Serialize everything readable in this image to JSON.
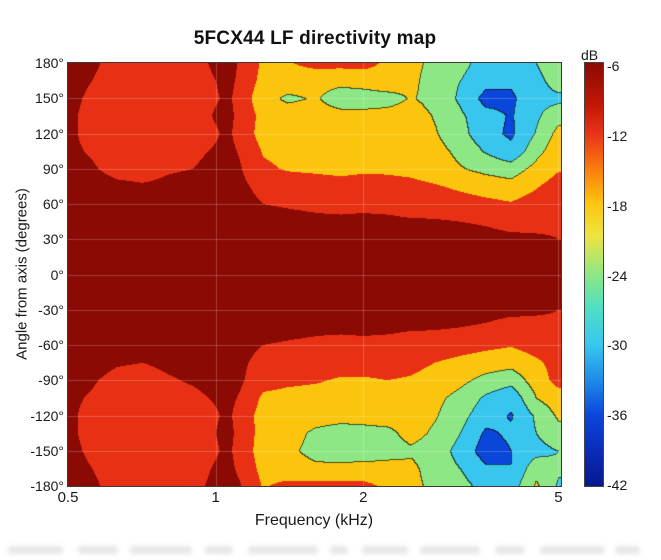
{
  "figure": {
    "background": "#ffffff"
  },
  "chart_data": {
    "type": "filled_contour",
    "title": "5FCX44 LF directivity map",
    "xlabel": "Frequency (kHz)",
    "ylabel": "Angle from axis (degrees)",
    "x_scale": "log",
    "x_range_khz": [
      0.5,
      5.06
    ],
    "y_range_deg": [
      -180,
      180
    ],
    "grid_lines": "on",
    "x_ticks": [
      {
        "label": "0.5",
        "value": 0.5
      },
      {
        "label": "1",
        "value": 1
      },
      {
        "label": "2",
        "value": 2
      },
      {
        "label": "5",
        "value": 5
      }
    ],
    "y_ticks": [
      {
        "label": "180°",
        "value": 180
      },
      {
        "label": "150°",
        "value": 150
      },
      {
        "label": "120°",
        "value": 120
      },
      {
        "label": "90°",
        "value": 90
      },
      {
        "label": "60°",
        "value": 60
      },
      {
        "label": "30°",
        "value": 30
      },
      {
        "label": "0°",
        "value": 0
      },
      {
        "label": "-30°",
        "value": -30
      },
      {
        "label": "-60°",
        "value": -60
      },
      {
        "label": "-90°",
        "value": -90
      },
      {
        "label": "-120°",
        "value": -120
      },
      {
        "label": "-150°",
        "value": -150
      },
      {
        "label": "-180°",
        "value": -180
      }
    ],
    "contour_levels_db": [
      -36,
      -30,
      -24,
      -18,
      -12,
      -6
    ],
    "bands": [
      {
        "range_db": ">= -6",
        "color": "#8B0A03"
      },
      {
        "range_db": "-12 to -6",
        "color": "#E83114"
      },
      {
        "range_db": "-18 to -12",
        "color": "#FBC40D"
      },
      {
        "range_db": "-24 to -18",
        "color": "#8DE785"
      },
      {
        "range_db": "-30 to -24",
        "color": "#38C6EF"
      },
      {
        "range_db": "-36 to -30",
        "color": "#0B46DB"
      },
      {
        "range_db": "< -36",
        "color": "#071C97"
      }
    ],
    "colorbar": {
      "label": "dB",
      "position": "right",
      "ticks": [
        {
          "label": "-6",
          "value": -6
        },
        {
          "label": "-12",
          "value": -12
        },
        {
          "label": "-18",
          "value": -18
        },
        {
          "label": "-24",
          "value": -24
        },
        {
          "label": "-30",
          "value": -30
        },
        {
          "label": "-36",
          "value": -36
        },
        {
          "label": "-42",
          "value": -42
        }
      ],
      "gradient": [
        {
          "pos": 0.0,
          "color": "#8B0A03"
        },
        {
          "pos": 0.1,
          "color": "#C21807"
        },
        {
          "pos": 0.167,
          "color": "#E83418"
        },
        {
          "pos": 0.25,
          "color": "#F97C0E"
        },
        {
          "pos": 0.333,
          "color": "#FDC60F"
        },
        {
          "pos": 0.41,
          "color": "#EDE442"
        },
        {
          "pos": 0.5,
          "color": "#8DE785"
        },
        {
          "pos": 0.58,
          "color": "#4FDFC4"
        },
        {
          "pos": 0.667,
          "color": "#38C6EF"
        },
        {
          "pos": 0.75,
          "color": "#1E8BE8"
        },
        {
          "pos": 0.833,
          "color": "#0B46DB"
        },
        {
          "pos": 0.92,
          "color": "#0A2CB8"
        },
        {
          "pos": 1.0,
          "color": "#06188F"
        }
      ]
    },
    "grid": {
      "frequencies_khz": [
        0.5,
        0.56,
        0.63,
        0.71,
        0.8,
        0.9,
        1.0,
        1.06,
        1.12,
        1.25,
        1.4,
        1.6,
        1.8,
        2.0,
        2.24,
        2.5,
        2.8,
        3.15,
        3.55,
        4.0,
        4.5,
        5.0
      ],
      "angles_deg": [
        180,
        165,
        150,
        135,
        120,
        105,
        90,
        75,
        60,
        45,
        30,
        15,
        0,
        -15,
        -30,
        -45,
        -60,
        -75,
        -90,
        -105,
        -120,
        -135,
        -150,
        -165,
        -180
      ],
      "spl_db": [
        [
          -3,
          -5,
          -8,
          -9,
          -9,
          -8,
          -5,
          -4,
          -6.5,
          -13,
          -12.5,
          -10,
          -10,
          -10,
          -13,
          -16,
          -20,
          -22,
          -27,
          -28,
          -24,
          -19
        ],
        [
          -4,
          -6,
          -8.5,
          -9,
          -9,
          -8.5,
          -6,
          -4.5,
          -7,
          -14,
          -15,
          -16,
          -16.5,
          -15.5,
          -14,
          -16.5,
          -21,
          -24,
          -28,
          -29,
          -26,
          -21
        ],
        [
          -4.5,
          -7,
          -9,
          -9.5,
          -9,
          -8.5,
          -6.5,
          -5,
          -8,
          -16,
          -19,
          -17.5,
          -21,
          -21,
          -20.5,
          -17.5,
          -20,
          -25,
          -32,
          -31,
          -26,
          -25.5
        ],
        [
          -5,
          -7.5,
          -9,
          -9.5,
          -8,
          -8.5,
          -5.5,
          -4.5,
          -7.5,
          -14,
          -15,
          -15.5,
          -16,
          -16,
          -15.5,
          -15,
          -18.5,
          -23,
          -28,
          -30.5,
          -25,
          -20
        ],
        [
          -5,
          -7.5,
          -9.5,
          -10,
          -9,
          -9.5,
          -6.5,
          -5,
          -8,
          -14.5,
          -15,
          -15.5,
          -15.5,
          -15,
          -15,
          -15.5,
          -17.5,
          -22,
          -28,
          -31,
          -23.5,
          -16
        ],
        [
          -5,
          -6.5,
          -8.5,
          -9,
          -8,
          -7,
          -5.5,
          -4.5,
          -6.5,
          -12.5,
          -13.5,
          -14,
          -14,
          -14,
          -14,
          -14.5,
          -16,
          -19.5,
          -24.5,
          -28.5,
          -20,
          -14
        ],
        [
          -4.5,
          -5.5,
          -7.5,
          -8,
          -6.5,
          -6,
          -4.5,
          -4,
          -5.5,
          -11,
          -12.5,
          -13,
          -13.5,
          -13,
          -13,
          -13.5,
          -15,
          -17.5,
          -19.5,
          -21,
          -16,
          -12.5
        ],
        [
          -3.5,
          -4,
          -5,
          -5.5,
          -5,
          -4.5,
          -3.5,
          -3.5,
          -4.5,
          -8,
          -9,
          -9.5,
          -10,
          -9.5,
          -10,
          -10.5,
          -11.5,
          -13,
          -14.5,
          -15.5,
          -12.5,
          -9.5
        ],
        [
          -3,
          -3.5,
          -4,
          -4.5,
          -4,
          -3.5,
          -3,
          -3,
          -3.5,
          -6,
          -6.5,
          -7,
          -7.5,
          -7,
          -7.5,
          -8,
          -8.5,
          -9.5,
          -10.5,
          -11.5,
          -9.5,
          -8
        ],
        [
          -2.5,
          -2.5,
          -3,
          -3,
          -3,
          -3,
          -2.5,
          -2.5,
          -3,
          -4,
          -4.5,
          -5,
          -5,
          -5,
          -5,
          -5.5,
          -5.5,
          -6,
          -6.5,
          -7.5,
          -7,
          -6.5
        ],
        [
          -2,
          -2,
          -2.5,
          -2.5,
          -2.5,
          -2.5,
          -2,
          -2,
          -2.5,
          -3,
          -3.5,
          -3.5,
          -3.5,
          -3.5,
          -3.5,
          -4,
          -4,
          -4,
          -4.5,
          -5,
          -5.5,
          -6
        ],
        [
          -1.5,
          -1.5,
          -2,
          -2,
          -2,
          -2,
          -1.5,
          -1.5,
          -2,
          -2.5,
          -2.5,
          -3,
          -3,
          -3,
          -3,
          -3,
          -3,
          -3.5,
          -3.5,
          -4,
          -4.5,
          -5
        ],
        [
          -1.5,
          -1.5,
          -1.5,
          -1.5,
          -1.5,
          -1.5,
          -1.5,
          -1.5,
          -1.5,
          -2,
          -2,
          -2.5,
          -2.5,
          -2.5,
          -2.5,
          -2.5,
          -2.5,
          -3,
          -3,
          -3.5,
          -4,
          -4.5
        ],
        [
          -1.5,
          -1.5,
          -2,
          -2,
          -2,
          -2,
          -1.5,
          -1.5,
          -2,
          -2.5,
          -2.5,
          -3,
          -3,
          -3,
          -3,
          -3,
          -3,
          -3.5,
          -3.5,
          -4,
          -4.5,
          -5
        ],
        [
          -2,
          -2,
          -2.5,
          -2.5,
          -2.5,
          -2.5,
          -2,
          -2,
          -2.5,
          -3,
          -3.5,
          -3.5,
          -3.5,
          -3.5,
          -3.5,
          -4,
          -4,
          -4,
          -4.5,
          -5,
          -5.5,
          -6
        ],
        [
          -2.5,
          -2.5,
          -3,
          -3,
          -3,
          -3,
          -2.5,
          -2.5,
          -3,
          -4,
          -4.5,
          -5,
          -5,
          -5,
          -5,
          -5.5,
          -5.5,
          -6,
          -6.5,
          -7.5,
          -7,
          -6.5
        ],
        [
          -3,
          -3.5,
          -4,
          -4.5,
          -4,
          -3.5,
          -3,
          -3,
          -3.5,
          -6,
          -6.5,
          -7,
          -7.5,
          -7,
          -7.5,
          -8,
          -8.5,
          -9.5,
          -10.5,
          -11.5,
          -9.5,
          -8
        ],
        [
          -3.5,
          -4,
          -5.5,
          -6,
          -5,
          -4.5,
          -3.5,
          -3.5,
          -4.5,
          -8.5,
          -9,
          -10,
          -10,
          -10,
          -10,
          -10.5,
          -12,
          -13.5,
          -15,
          -16,
          -13,
          -10
        ],
        [
          -4.5,
          -5.5,
          -7.5,
          -8,
          -6.5,
          -5.5,
          -4.5,
          -4,
          -5,
          -10,
          -11,
          -11.5,
          -12.5,
          -12.5,
          -12,
          -12.5,
          -14,
          -16.5,
          -20,
          -22,
          -15,
          -10
        ],
        [
          -5,
          -6.5,
          -8.5,
          -9,
          -7.5,
          -7,
          -5.5,
          -4.5,
          -6.5,
          -13,
          -13.5,
          -14,
          -14.5,
          -14,
          -14,
          -14.5,
          -16.5,
          -20,
          -25,
          -28.5,
          -18,
          -14.5
        ],
        [
          -5,
          -7.5,
          -9.5,
          -10,
          -9.5,
          -9.5,
          -6.5,
          -5,
          -8,
          -14.5,
          -15,
          -16,
          -16.5,
          -16,
          -15.5,
          -15.5,
          -17.5,
          -22,
          -27.5,
          -30.5,
          -23,
          -17
        ],
        [
          -5,
          -7.5,
          -9.5,
          -10,
          -8.5,
          -9,
          -6,
          -4.5,
          -7.5,
          -14.5,
          -16,
          -19,
          -20,
          -20,
          -19.5,
          -16,
          -19,
          -24,
          -31,
          -29,
          -24,
          -20
        ],
        [
          -4.5,
          -7,
          -9,
          -9.5,
          -9,
          -8.5,
          -6.5,
          -5,
          -8,
          -15,
          -17,
          -19.5,
          -20.5,
          -21,
          -20.5,
          -19,
          -21,
          -26,
          -33,
          -30,
          -26,
          -24
        ],
        [
          -4,
          -6,
          -8.5,
          -9,
          -9,
          -8,
          -5.5,
          -4.5,
          -7,
          -14,
          -15.5,
          -17,
          -16.5,
          -16,
          -15.5,
          -16.5,
          -21,
          -24,
          -29,
          -30,
          -20,
          -23
        ],
        [
          -3,
          -5,
          -8,
          -9,
          -9,
          -7,
          -5,
          -4.5,
          -5.5,
          -12.5,
          -10.5,
          -10,
          -10,
          -10.5,
          -13,
          -16,
          -20,
          -22,
          -26,
          -27,
          -17,
          -25
        ]
      ]
    }
  }
}
